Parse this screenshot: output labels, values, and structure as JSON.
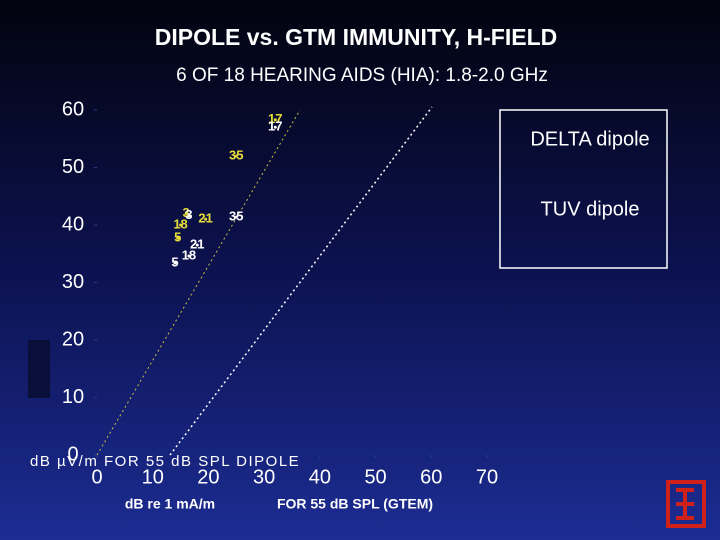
{
  "chart_data": {
    "type": "scatter",
    "title": "DIPOLE vs. GTM IMMUNITY, H-FIELD",
    "subtitle": "6 OF 18 HEARING AIDS (HIA): 1.8-2.0 GHz",
    "x_label": "dB re 1 mA/m",
    "x_label_2": "FOR 55 dB SPL (GTEM)",
    "y_label": "dB µV/m FOR 55 dB SPL DIPOLE",
    "xlim": [
      0,
      70
    ],
    "xticks": [
      0,
      10,
      20,
      30,
      40,
      50,
      60,
      70
    ],
    "ylim": [
      0,
      60
    ],
    "yticks": [
      0,
      10,
      20,
      30,
      40,
      50,
      60
    ],
    "grid": false,
    "legend": "right",
    "series": [
      {
        "name": "DELTA dipole",
        "color": "#e8dc3a",
        "x": [
          32,
          25,
          16,
          19.5,
          15,
          14.5
        ],
        "values": [
          58.3,
          52,
          42,
          41,
          40,
          37.7
        ],
        "labels": [
          "17",
          "35",
          "3",
          "21",
          "18",
          "5"
        ]
      },
      {
        "name": "TUV dipole",
        "color": "#ffffff",
        "x": [
          32,
          25,
          16.5,
          18,
          16.5,
          14
        ],
        "values": [
          57,
          41.4,
          41.6,
          36.5,
          34.6,
          33.4
        ],
        "labels": [
          "17",
          "35",
          "3",
          "21",
          "18",
          "5"
        ]
      }
    ]
  }
}
